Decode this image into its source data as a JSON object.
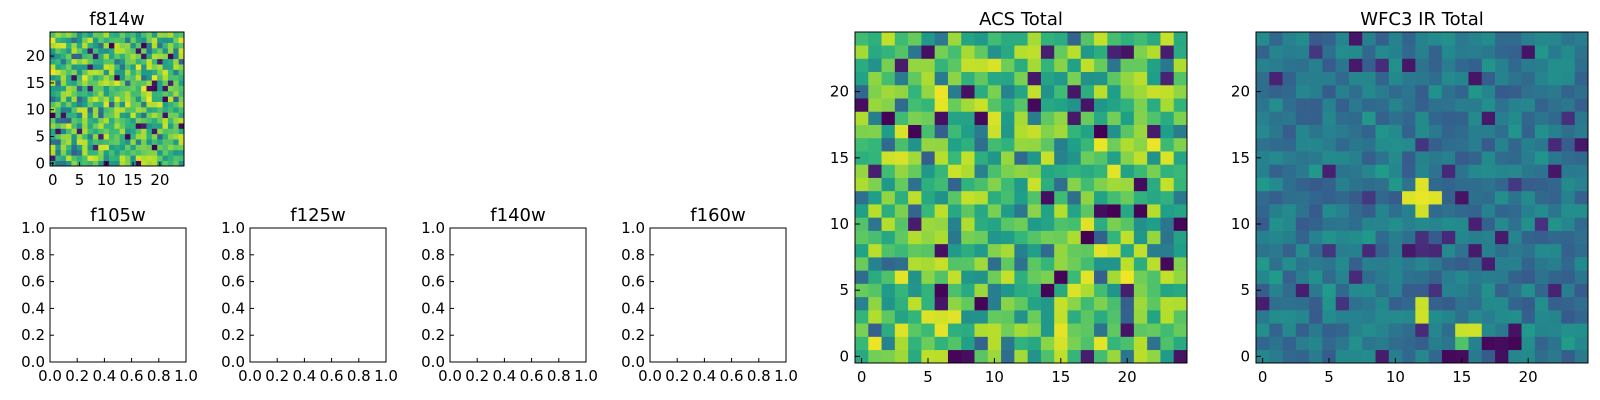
{
  "chart_data": [
    {
      "type": "heatmap",
      "title": "f814w",
      "xlim": [
        -0.5,
        24.5
      ],
      "ylim": [
        -0.5,
        24.5
      ],
      "xticks": [
        "0",
        "5",
        "10",
        "15",
        "20"
      ],
      "yticks": [
        "0",
        "5",
        "10",
        "15",
        "20"
      ],
      "colormap": "viridis",
      "grid_size": [
        25,
        25
      ],
      "seed": 11,
      "distribution": "upper",
      "hotspots": []
    },
    {
      "type": "heatmap",
      "title": "f105w",
      "empty": true,
      "xlim": [
        0.0,
        1.0
      ],
      "ylim": [
        0.0,
        1.0
      ],
      "xticks": [
        "0.0",
        "0.2",
        "0.4",
        "0.6",
        "0.8",
        "1.0"
      ],
      "yticks": [
        "0.0",
        "0.2",
        "0.4",
        "0.6",
        "0.8",
        "1.0"
      ]
    },
    {
      "type": "heatmap",
      "title": "f125w",
      "empty": true,
      "xlim": [
        0.0,
        1.0
      ],
      "ylim": [
        0.0,
        1.0
      ],
      "xticks": [
        "0.0",
        "0.2",
        "0.4",
        "0.6",
        "0.8",
        "1.0"
      ],
      "yticks": [
        "0.0",
        "0.2",
        "0.4",
        "0.6",
        "0.8",
        "1.0"
      ]
    },
    {
      "type": "heatmap",
      "title": "f140w",
      "empty": true,
      "xlim": [
        0.0,
        1.0
      ],
      "ylim": [
        0.0,
        1.0
      ],
      "xticks": [
        "0.0",
        "0.2",
        "0.4",
        "0.6",
        "0.8",
        "1.0"
      ],
      "yticks": [
        "0.0",
        "0.2",
        "0.4",
        "0.6",
        "0.8",
        "1.0"
      ]
    },
    {
      "type": "heatmap",
      "title": "f160w",
      "empty": true,
      "xlim": [
        0.0,
        1.0
      ],
      "ylim": [
        0.0,
        1.0
      ],
      "xticks": [
        "0.0",
        "0.2",
        "0.4",
        "0.6",
        "0.8",
        "1.0"
      ],
      "yticks": [
        "0.0",
        "0.2",
        "0.4",
        "0.6",
        "0.8",
        "1.0"
      ]
    },
    {
      "type": "heatmap",
      "title": "ACS Total",
      "xlim": [
        -0.5,
        24.5
      ],
      "ylim": [
        -0.5,
        24.5
      ],
      "xticks": [
        "0",
        "5",
        "10",
        "15",
        "20"
      ],
      "yticks": [
        "0",
        "5",
        "10",
        "15",
        "20"
      ],
      "colormap": "viridis",
      "grid_size": [
        25,
        25
      ],
      "seed": 29,
      "distribution": "upper",
      "hotspots": []
    },
    {
      "type": "heatmap",
      "title": "WFC3 IR Total",
      "xlim": [
        -0.5,
        24.5
      ],
      "ylim": [
        -0.5,
        24.5
      ],
      "xticks": [
        "0",
        "5",
        "10",
        "15",
        "20"
      ],
      "yticks": [
        "0",
        "5",
        "10",
        "15",
        "20"
      ],
      "colormap": "viridis",
      "grid_size": [
        25,
        25
      ],
      "seed": 53,
      "distribution": "lower",
      "hotspots": [
        {
          "col": 12,
          "row": 12,
          "value": 0.97
        },
        {
          "col": 11,
          "row": 12,
          "value": 0.95
        },
        {
          "col": 13,
          "row": 12,
          "value": 0.95
        },
        {
          "col": 12,
          "row": 13,
          "value": 0.95
        },
        {
          "col": 12,
          "row": 11,
          "value": 0.93
        },
        {
          "col": 12,
          "row": 4,
          "value": 0.92
        },
        {
          "col": 12,
          "row": 3,
          "value": 0.93
        },
        {
          "col": 15,
          "row": 2,
          "value": 0.92
        },
        {
          "col": 16,
          "row": 2,
          "value": 0.93
        },
        {
          "col": 15,
          "row": 1,
          "value": 0.72
        },
        {
          "col": 17,
          "row": 1,
          "value": 0.02
        },
        {
          "col": 18,
          "row": 1,
          "value": 0.03
        },
        {
          "col": 19,
          "row": 1,
          "value": 0.01
        },
        {
          "col": 14,
          "row": 0,
          "value": 0.02
        },
        {
          "col": 15,
          "row": 0,
          "value": 0.03
        },
        {
          "col": 19,
          "row": 2,
          "value": 0.05
        },
        {
          "col": 18,
          "row": 0,
          "value": 0.04
        }
      ]
    }
  ]
}
